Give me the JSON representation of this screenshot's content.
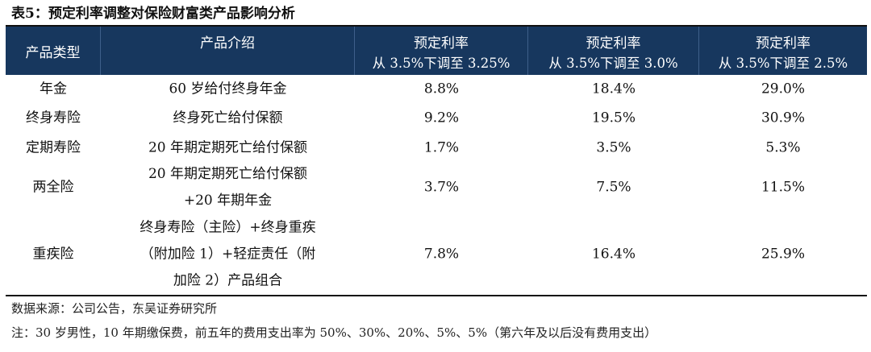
{
  "title": "表5：预定利率调整对保险财富类产品影响分析",
  "headers": {
    "type": "产品类型",
    "intro": "产品介绍",
    "rate_label": "预定利率",
    "scenarios": [
      "从 3.5%下调至 3.25%",
      "从 3.5%下调至 3.0%",
      "从 3.5%下调至 2.5%"
    ]
  },
  "rows": [
    {
      "type": "年金",
      "intro": [
        "60 岁给付终身年金"
      ],
      "values": [
        "8.8%",
        "18.4%",
        "29.0%"
      ]
    },
    {
      "type": "终身寿险",
      "intro": [
        "终身死亡给付保额"
      ],
      "values": [
        "9.2%",
        "19.5%",
        "30.9%"
      ]
    },
    {
      "type": "定期寿险",
      "intro": [
        "20 年期定期死亡给付保额"
      ],
      "values": [
        "1.7%",
        "3.5%",
        "5.3%"
      ]
    },
    {
      "type": "两全险",
      "intro": [
        "20 年期定期死亡给付保额",
        "+20 年期年金"
      ],
      "values": [
        "3.7%",
        "7.5%",
        "11.5%"
      ]
    },
    {
      "type": "重疾险",
      "intro": [
        "终身寿险（主险）+终身重疾",
        "（附加险 1）+轻症责任（附",
        "加险 2）产品组合"
      ],
      "values": [
        "7.8%",
        "16.4%",
        "25.9%"
      ]
    }
  ],
  "source": "数据来源：公司公告，东吴证券研究所",
  "note": "注：30 岁男性，10 年期缴保费，前五年的费用支出率为 50%、30%、20%、5%、5%（第六年及以后没有费用支出）",
  "colors": {
    "header_bg": "#17375e"
  }
}
